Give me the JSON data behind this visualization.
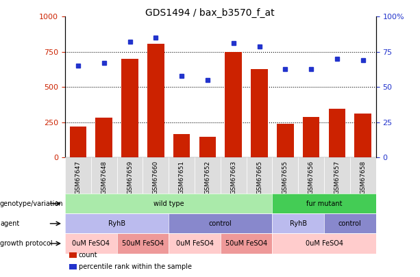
{
  "title": "GDS1494 / bax_b3570_f_at",
  "samples": [
    "GSM67647",
    "GSM67648",
    "GSM67659",
    "GSM67660",
    "GSM67651",
    "GSM67652",
    "GSM67663",
    "GSM67665",
    "GSM67655",
    "GSM67656",
    "GSM67657",
    "GSM67658"
  ],
  "counts": [
    220,
    285,
    700,
    805,
    165,
    150,
    750,
    630,
    240,
    290,
    345,
    315
  ],
  "percentiles": [
    65,
    67,
    82,
    85,
    58,
    55,
    81,
    79,
    63,
    63,
    70,
    69
  ],
  "ylim_left": [
    0,
    1000
  ],
  "ylim_right": [
    0,
    100
  ],
  "yticks_left": [
    0,
    250,
    500,
    750,
    1000
  ],
  "yticks_right": [
    0,
    25,
    50,
    75,
    100
  ],
  "bar_color": "#cc2200",
  "dot_color": "#2233cc",
  "annotation_rows": [
    {
      "label": "genotype/variation",
      "segments": [
        {
          "text": "wild type",
          "start": 0,
          "end": 8,
          "color": "#aaeaaa"
        },
        {
          "text": "fur mutant",
          "start": 8,
          "end": 12,
          "color": "#44cc55"
        }
      ]
    },
    {
      "label": "agent",
      "segments": [
        {
          "text": "RyhB",
          "start": 0,
          "end": 4,
          "color": "#bbbbee"
        },
        {
          "text": "control",
          "start": 4,
          "end": 8,
          "color": "#8888cc"
        },
        {
          "text": "RyhB",
          "start": 8,
          "end": 10,
          "color": "#bbbbee"
        },
        {
          "text": "control",
          "start": 10,
          "end": 12,
          "color": "#8888cc"
        }
      ]
    },
    {
      "label": "growth protocol",
      "segments": [
        {
          "text": "0uM FeSO4",
          "start": 0,
          "end": 2,
          "color": "#ffcccc"
        },
        {
          "text": "50uM FeSO4",
          "start": 2,
          "end": 4,
          "color": "#ee9999"
        },
        {
          "text": "0uM FeSO4",
          "start": 4,
          "end": 6,
          "color": "#ffcccc"
        },
        {
          "text": "50uM FeSO4",
          "start": 6,
          "end": 8,
          "color": "#ee9999"
        },
        {
          "text": "0uM FeSO4",
          "start": 8,
          "end": 12,
          "color": "#ffcccc"
        }
      ]
    }
  ],
  "legend_items": [
    {
      "label": "count",
      "color": "#cc2200"
    },
    {
      "label": "percentile rank within the sample",
      "color": "#2233cc"
    }
  ]
}
